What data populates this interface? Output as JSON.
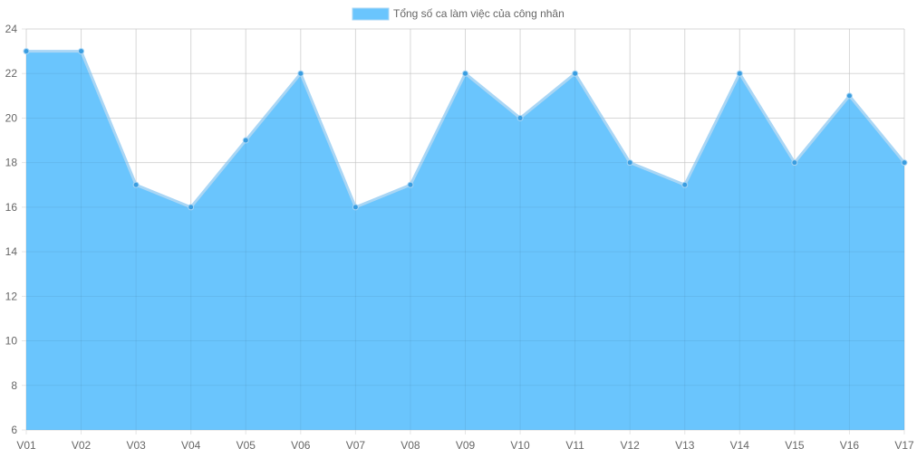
{
  "chart_data": {
    "type": "area",
    "categories": [
      "V01",
      "V02",
      "V03",
      "V04",
      "V05",
      "V06",
      "V07",
      "V08",
      "V09",
      "V10",
      "V11",
      "V12",
      "V13",
      "V14",
      "V15",
      "V16",
      "V17"
    ],
    "series": [
      {
        "name": "Tổng số ca làm việc của công nhân",
        "values": [
          23,
          23,
          17,
          16,
          19,
          22,
          16,
          17,
          22,
          20,
          22,
          18,
          17,
          22,
          18,
          21,
          18
        ],
        "fill_color": "#6ac5fd",
        "line_color": "#a9d6f5",
        "point_color": "#3a9de0"
      }
    ],
    "yticks": [
      "6",
      "8",
      "10",
      "12",
      "14",
      "16",
      "18",
      "20",
      "22",
      "24"
    ],
    "ylim": [
      6,
      24
    ],
    "grid": true,
    "legend_position": "top-center",
    "grid_color": "#e5e5e5"
  }
}
